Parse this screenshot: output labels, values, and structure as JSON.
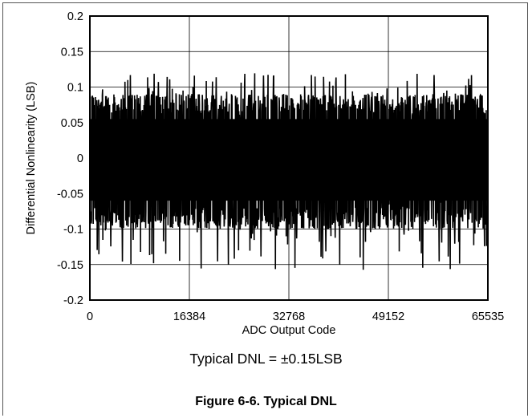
{
  "chart_data": {
    "type": "line",
    "ylabel": "Differential Nonlinearity (LSB)",
    "xlabel": "ADC Output Code",
    "xlim": [
      0,
      65535
    ],
    "ylim": [
      -0.2,
      0.2
    ],
    "x_ticks": [
      "0",
      "16384",
      "32768",
      "49152",
      "65535"
    ],
    "y_ticks": [
      "0.2",
      "0.15",
      "0.1",
      "0.05",
      "0",
      "-0.05",
      "-0.1",
      "-0.15",
      "-0.2"
    ],
    "grid": true,
    "series": [
      {
        "typical_band": [
          -0.1,
          0.09
        ],
        "min": -0.16,
        "max": 0.12,
        "color": "#000000"
      }
    ]
  },
  "note": "Typical DNL = ±0.15LSB",
  "caption": "Figure 6-6. Typical DNL"
}
